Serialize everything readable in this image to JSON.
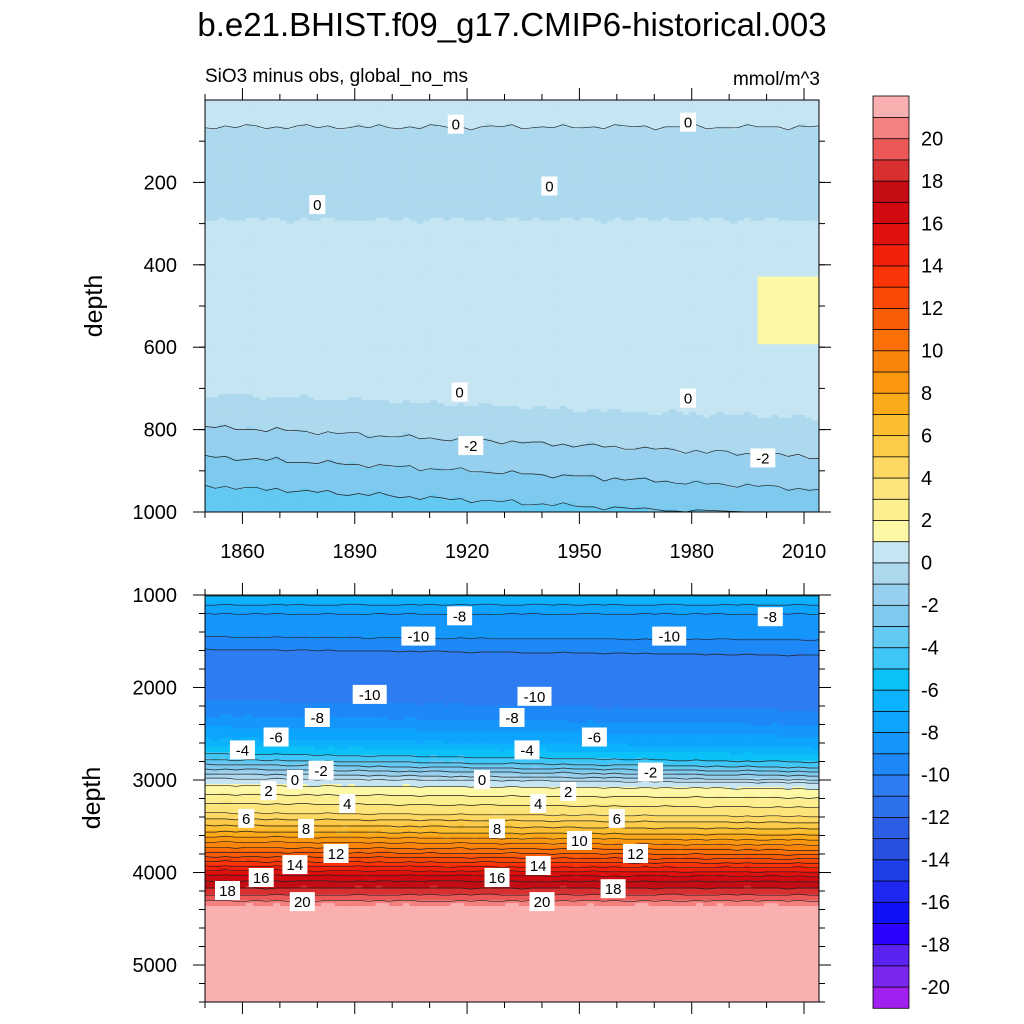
{
  "figure": {
    "title": "b.e21.BHIST.f09_g17.CMIP6-historical.003",
    "subtitle": "SiO3 minus obs, global_no_ms",
    "units": "mmol/m^3"
  },
  "colorbar": {
    "levels": [
      -21,
      -20,
      -19,
      -18,
      -17,
      -16,
      -15,
      -14,
      -13,
      -12,
      -11,
      -10,
      -9,
      -8,
      -7,
      -6,
      -5,
      -4,
      -3,
      -2,
      -1,
      0,
      1,
      2,
      3,
      4,
      5,
      6,
      7,
      8,
      9,
      10,
      11,
      12,
      13,
      14,
      15,
      16,
      17,
      18,
      19,
      20,
      21
    ],
    "colors": [
      "#a020f0",
      "#7a26ee",
      "#5a23ef",
      "#2b00ff",
      "#1010f5",
      "#1e28f0",
      "#1e3fe8",
      "#2850e0",
      "#2a5ee4",
      "#2c70ec",
      "#2e7cf2",
      "#1e88f8",
      "#1496fb",
      "#0da4fd",
      "#0cb2fb",
      "#0cc0f8",
      "#3ec6f6",
      "#62c9f2",
      "#7ecaef",
      "#96d0ee",
      "#add9ef",
      "#c6e5f3",
      "#fdf8a6",
      "#fdef8f",
      "#fde47a",
      "#fdd862",
      "#fccc48",
      "#fbbe30",
      "#fbaa1a",
      "#fb970e",
      "#fb840a",
      "#fa7007",
      "#fa5c06",
      "#fa4806",
      "#fa3407",
      "#f0200a",
      "#e0100d",
      "#d00a10",
      "#c40c14",
      "#d83030",
      "#ec5858",
      "#f48080",
      "#fab0b0"
    ],
    "tick_labels": [
      "-20",
      "-18",
      "-16",
      "-14",
      "-12",
      "-10",
      "-8",
      "-6",
      "-4",
      "-2",
      "0",
      "2",
      "4",
      "6",
      "8",
      "10",
      "12",
      "14",
      "16",
      "18",
      "20"
    ]
  },
  "chart_data": [
    {
      "type": "heatmap",
      "panel": "upper",
      "ylabel": "depth",
      "x_tick_labels": [
        "1860",
        "1890",
        "1920",
        "1950",
        "1980",
        "2010"
      ],
      "y_tick_labels": [
        "200",
        "400",
        "600",
        "800",
        "1000"
      ],
      "xlim": [
        1850,
        2014
      ],
      "ylim": [
        1000,
        0
      ],
      "y_reversed": true,
      "profile_1850": {
        "depth": [
          0,
          30,
          60,
          90,
          130,
          180,
          230,
          280,
          330,
          370,
          400,
          500,
          600,
          680,
          720,
          760,
          800,
          850,
          900,
          950,
          1000
        ],
        "value": [
          0.5,
          0.3,
          0.05,
          -0.3,
          -0.7,
          -0.6,
          -0.3,
          -0.05,
          0.2,
          0.4,
          0.6,
          0.9,
          0.7,
          0.3,
          -0.05,
          -0.6,
          -1.1,
          -1.8,
          -2.5,
          -3.2,
          -3.8
        ]
      },
      "depth_shift_2014": [
        0,
        0,
        0,
        0,
        0,
        0,
        0,
        0,
        0,
        0,
        0,
        0,
        20,
        50,
        60,
        70,
        75,
        80,
        80,
        80,
        80
      ],
      "max_region_label": {
        "x": [
          1997,
          2014
        ],
        "depth": [
          430,
          590
        ]
      },
      "contour_labels": [
        {
          "text": "0",
          "x": 1917,
          "y": 60
        },
        {
          "text": "0",
          "x": 1979,
          "y": 55
        },
        {
          "text": "0",
          "x": 1880,
          "y": 255
        },
        {
          "text": "0",
          "x": 1942,
          "y": 210
        },
        {
          "text": "0",
          "x": 1918,
          "y": 710
        },
        {
          "text": "0",
          "x": 1979,
          "y": 725
        },
        {
          "text": "-2",
          "x": 1921,
          "y": 840
        },
        {
          "text": "-2",
          "x": 1999,
          "y": 870
        }
      ]
    },
    {
      "type": "heatmap",
      "panel": "lower",
      "ylabel": "depth",
      "y_tick_labels": [
        "1000",
        "2000",
        "3000",
        "4000",
        "5000"
      ],
      "xlim": [
        1850,
        2014
      ],
      "ylim": [
        5400,
        1000
      ],
      "y_reversed": true,
      "profile_1850": {
        "depth": [
          1000,
          1200,
          1450,
          1650,
          1850,
          2050,
          2300,
          2550,
          2750,
          2850,
          2950,
          3000,
          3150,
          3350,
          3550,
          3750,
          3900,
          4050,
          4200,
          4280,
          4350,
          5400
        ],
        "value": [
          -6,
          -8,
          -9,
          -10.5,
          -11,
          -10.5,
          -9,
          -7,
          -4.5,
          -2.5,
          -0.6,
          0.5,
          2,
          4,
          7,
          10.5,
          13.5,
          16.5,
          18.5,
          19.6,
          21,
          21
        ]
      },
      "depth_shift_2014": [
        0,
        0,
        30,
        80,
        110,
        120,
        110,
        100,
        90,
        80,
        60,
        40,
        40,
        40,
        40,
        30,
        20,
        10,
        0,
        0,
        0,
        0
      ],
      "contour_labels": [
        {
          "text": "-8",
          "x": 1918,
          "y": 1230
        },
        {
          "text": "-8",
          "x": 2001,
          "y": 1240
        },
        {
          "text": "-10",
          "x": 1907,
          "y": 1450
        },
        {
          "text": "-10",
          "x": 1974,
          "y": 1450
        },
        {
          "text": "-10",
          "x": 1894,
          "y": 2080
        },
        {
          "text": "-10",
          "x": 1938,
          "y": 2100
        },
        {
          "text": "-8",
          "x": 1880,
          "y": 2330
        },
        {
          "text": "-8",
          "x": 1932,
          "y": 2330
        },
        {
          "text": "-6",
          "x": 1869,
          "y": 2540
        },
        {
          "text": "-6",
          "x": 1954,
          "y": 2540
        },
        {
          "text": "-4",
          "x": 1860,
          "y": 2680
        },
        {
          "text": "-4",
          "x": 1936,
          "y": 2680
        },
        {
          "text": "-2",
          "x": 1881,
          "y": 2900
        },
        {
          "text": "-2",
          "x": 1969,
          "y": 2920
        },
        {
          "text": "0",
          "x": 1874,
          "y": 3000
        },
        {
          "text": "0",
          "x": 1924,
          "y": 3000
        },
        {
          "text": "2",
          "x": 1867,
          "y": 3120
        },
        {
          "text": "2",
          "x": 1947,
          "y": 3130
        },
        {
          "text": "4",
          "x": 1888,
          "y": 3260
        },
        {
          "text": "4",
          "x": 1939,
          "y": 3260
        },
        {
          "text": "6",
          "x": 1861,
          "y": 3420
        },
        {
          "text": "6",
          "x": 1960,
          "y": 3420
        },
        {
          "text": "8",
          "x": 1877,
          "y": 3530
        },
        {
          "text": "8",
          "x": 1928,
          "y": 3530
        },
        {
          "text": "10",
          "x": 1950,
          "y": 3660
        },
        {
          "text": "12",
          "x": 1885,
          "y": 3800
        },
        {
          "text": "12",
          "x": 1965,
          "y": 3800
        },
        {
          "text": "14",
          "x": 1874,
          "y": 3920
        },
        {
          "text": "14",
          "x": 1939,
          "y": 3930
        },
        {
          "text": "16",
          "x": 1865,
          "y": 4060
        },
        {
          "text": "16",
          "x": 1928,
          "y": 4060
        },
        {
          "text": "18",
          "x": 1856,
          "y": 4200
        },
        {
          "text": "18",
          "x": 1959,
          "y": 4180
        },
        {
          "text": "20",
          "x": 1876,
          "y": 4320
        },
        {
          "text": "20",
          "x": 1940,
          "y": 4320
        }
      ]
    }
  ]
}
